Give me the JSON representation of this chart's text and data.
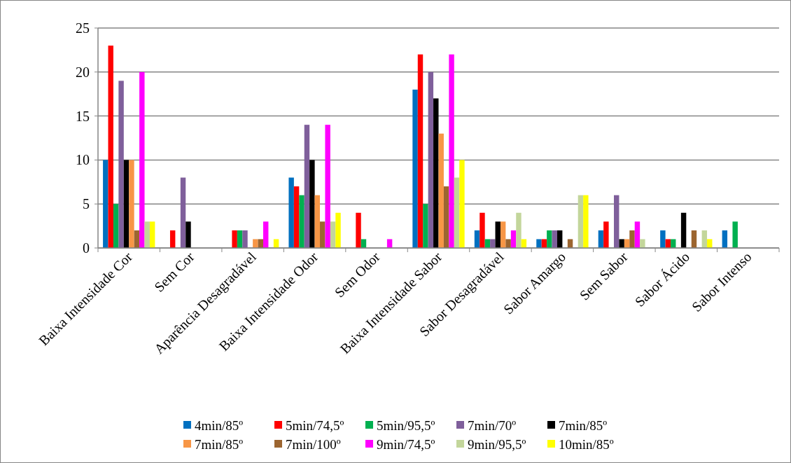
{
  "chart_data": {
    "type": "bar",
    "categories": [
      "Baixa Intensidade Cor",
      "Sem Cor",
      "Aparência Desagradável",
      "Baixa Intensidade Odor",
      "Sem Odor",
      "Baixa Intensidade Sabor",
      "Sabor Desagradável",
      "Sabor Amargo",
      "Sem Sabor",
      "Sabor Ácido",
      "Sabor Intenso"
    ],
    "series": [
      {
        "name": "4min/85º",
        "color": "#0070c0",
        "values": [
          10,
          0,
          0,
          8,
          0,
          18,
          2,
          1,
          2,
          2,
          2
        ]
      },
      {
        "name": "5min/74,5º",
        "color": "#ff0000",
        "values": [
          23,
          2,
          2,
          7,
          4,
          22,
          4,
          1,
          3,
          1,
          0
        ]
      },
      {
        "name": "5min/95,5º",
        "color": "#00b050",
        "values": [
          5,
          0,
          2,
          6,
          1,
          5,
          1,
          2,
          0,
          1,
          3
        ]
      },
      {
        "name": "7min/70º",
        "color": "#7f5f9b",
        "values": [
          19,
          8,
          2,
          14,
          0,
          20,
          1,
          2,
          6,
          0,
          0
        ]
      },
      {
        "name": "7min/85º",
        "color": "#000000",
        "values": [
          10,
          3,
          0,
          10,
          0,
          17,
          3,
          2,
          1,
          4,
          0
        ]
      },
      {
        "name": "7min/85º",
        "color": "#f79646",
        "values": [
          10,
          0,
          1,
          6,
          0,
          13,
          3,
          0,
          1,
          0,
          0
        ]
      },
      {
        "name": "7min/100º",
        "color": "#9c6530",
        "values": [
          2,
          0,
          1,
          3,
          0,
          7,
          1,
          1,
          2,
          2,
          0
        ]
      },
      {
        "name": "9min/74,5º",
        "color": "#ff00ff",
        "values": [
          20,
          0,
          3,
          14,
          1,
          22,
          2,
          0,
          3,
          0,
          0
        ]
      },
      {
        "name": "9min/95,5º",
        "color": "#c3d69b",
        "values": [
          3,
          0,
          0,
          3,
          0,
          8,
          4,
          6,
          1,
          2,
          0
        ]
      },
      {
        "name": "10min/85º",
        "color": "#ffff00",
        "values": [
          3,
          0,
          1,
          4,
          0,
          10,
          1,
          6,
          0,
          1,
          0
        ]
      }
    ],
    "ylim": [
      0,
      25
    ],
    "yticks": [
      0,
      5,
      10,
      15,
      20,
      25
    ],
    "grid": "y",
    "legend": "bottom"
  }
}
